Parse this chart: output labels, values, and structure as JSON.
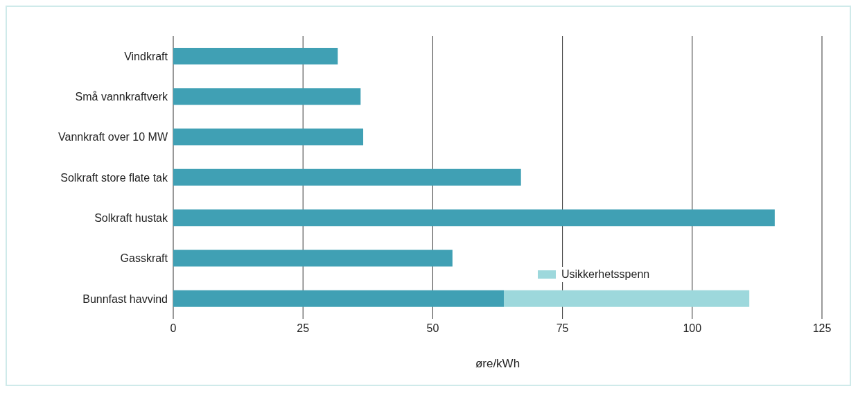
{
  "chart_data": {
    "type": "bar",
    "orientation": "horizontal",
    "stacked": true,
    "categories": [
      "Vindkraft",
      "Små vannkraftverk",
      "Vannkraft over 10 MW",
      "Solkraft store flate tak",
      "Solkraft hustak",
      "Gasskraft",
      "Bunnfast havvind"
    ],
    "series": [
      {
        "color": "#40a0b4",
        "values": [
          31.7,
          36.1,
          36.6,
          67.0,
          115.9,
          53.8,
          63.7
        ]
      },
      {
        "name": "Usikkerhetsspenn",
        "color": "#9dd8dc",
        "values": [
          null,
          null,
          null,
          null,
          null,
          null,
          47.3
        ]
      }
    ],
    "xlim": [
      0,
      125
    ],
    "xticks": [
      0,
      25,
      50,
      75,
      100,
      125
    ],
    "xlabel": "øre/kWh",
    "grid": "x",
    "legend": "bottom"
  }
}
